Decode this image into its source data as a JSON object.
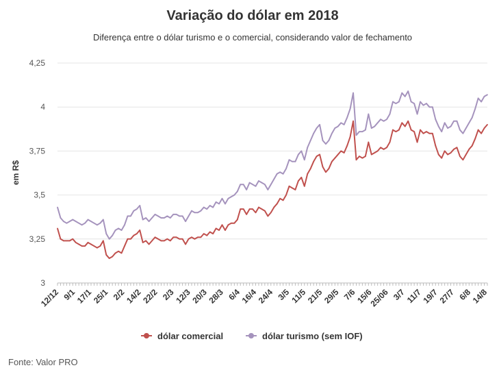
{
  "chart_data": {
    "type": "line",
    "title": "Variação do dólar em 2018",
    "subtitle": "Diferença entre o dólar turismo e o comercial, considerando valor de fechamento",
    "ylabel": "em R$",
    "xlabel": "",
    "ylim": [
      3,
      4.25
    ],
    "yticks": [
      "3",
      "3,25",
      "3,5",
      "3,75",
      "4",
      "4,25"
    ],
    "xtick_labels": [
      "12/12",
      "9/1",
      "17/1",
      "25/1",
      "2/2",
      "14/2",
      "22/2",
      "2/3",
      "12/3",
      "20/3",
      "28/3",
      "6/4",
      "16/4",
      "24/4",
      "3/5",
      "11/5",
      "21/5",
      "29/5",
      "7/6",
      "15/6",
      "25/06",
      "3/7",
      "11/7",
      "19/7",
      "27/7",
      "6/8",
      "14/8"
    ],
    "grid": "horizontal",
    "legend": "bottom",
    "source": "Fonte: Valor PRO",
    "colors": {
      "comercial": "#c0504d",
      "turismo": "#a593bd"
    },
    "series": [
      {
        "name": "dólar comercial",
        "values": [
          3.31,
          3.25,
          3.24,
          3.24,
          3.24,
          3.25,
          3.23,
          3.22,
          3.21,
          3.21,
          3.23,
          3.22,
          3.21,
          3.2,
          3.21,
          3.24,
          3.16,
          3.14,
          3.15,
          3.17,
          3.18,
          3.17,
          3.21,
          3.25,
          3.25,
          3.27,
          3.28,
          3.3,
          3.23,
          3.24,
          3.22,
          3.24,
          3.26,
          3.25,
          3.24,
          3.24,
          3.25,
          3.24,
          3.26,
          3.26,
          3.25,
          3.25,
          3.22,
          3.25,
          3.26,
          3.25,
          3.26,
          3.26,
          3.28,
          3.27,
          3.29,
          3.28,
          3.31,
          3.3,
          3.33,
          3.3,
          3.33,
          3.34,
          3.34,
          3.36,
          3.42,
          3.42,
          3.39,
          3.42,
          3.42,
          3.4,
          3.43,
          3.42,
          3.41,
          3.38,
          3.4,
          3.43,
          3.45,
          3.48,
          3.47,
          3.5,
          3.55,
          3.54,
          3.53,
          3.58,
          3.6,
          3.55,
          3.62,
          3.65,
          3.69,
          3.72,
          3.73,
          3.66,
          3.63,
          3.65,
          3.69,
          3.71,
          3.73,
          3.75,
          3.74,
          3.78,
          3.83,
          3.92,
          3.7,
          3.72,
          3.71,
          3.72,
          3.8,
          3.73,
          3.74,
          3.75,
          3.77,
          3.76,
          3.77,
          3.8,
          3.87,
          3.86,
          3.87,
          3.91,
          3.89,
          3.92,
          3.87,
          3.86,
          3.8,
          3.87,
          3.85,
          3.86,
          3.85,
          3.85,
          3.78,
          3.73,
          3.71,
          3.75,
          3.73,
          3.74,
          3.76,
          3.77,
          3.72,
          3.7,
          3.73,
          3.76,
          3.78,
          3.82,
          3.87,
          3.85,
          3.88,
          3.9
        ]
      },
      {
        "name": "dólar turismo (sem IOF)",
        "values": [
          3.43,
          3.37,
          3.35,
          3.34,
          3.35,
          3.36,
          3.35,
          3.34,
          3.33,
          3.34,
          3.36,
          3.35,
          3.34,
          3.33,
          3.34,
          3.36,
          3.28,
          3.25,
          3.27,
          3.3,
          3.31,
          3.3,
          3.33,
          3.38,
          3.38,
          3.41,
          3.42,
          3.44,
          3.36,
          3.37,
          3.35,
          3.37,
          3.39,
          3.38,
          3.37,
          3.37,
          3.38,
          3.37,
          3.39,
          3.39,
          3.38,
          3.38,
          3.35,
          3.38,
          3.41,
          3.4,
          3.4,
          3.41,
          3.43,
          3.42,
          3.44,
          3.43,
          3.46,
          3.45,
          3.48,
          3.45,
          3.48,
          3.49,
          3.5,
          3.52,
          3.56,
          3.56,
          3.53,
          3.57,
          3.56,
          3.55,
          3.58,
          3.57,
          3.56,
          3.53,
          3.56,
          3.59,
          3.62,
          3.63,
          3.62,
          3.65,
          3.7,
          3.69,
          3.69,
          3.73,
          3.75,
          3.7,
          3.77,
          3.81,
          3.85,
          3.88,
          3.9,
          3.81,
          3.79,
          3.81,
          3.85,
          3.88,
          3.89,
          3.91,
          3.9,
          3.94,
          3.99,
          4.08,
          3.84,
          3.86,
          3.86,
          3.87,
          3.96,
          3.88,
          3.89,
          3.91,
          3.93,
          3.92,
          3.93,
          3.96,
          4.03,
          4.02,
          4.03,
          4.08,
          4.06,
          4.09,
          4.03,
          4.02,
          3.96,
          4.03,
          4.01,
          4.02,
          4.0,
          4.0,
          3.93,
          3.89,
          3.86,
          3.91,
          3.88,
          3.89,
          3.92,
          3.92,
          3.87,
          3.85,
          3.88,
          3.91,
          3.94,
          3.99,
          4.05,
          4.03,
          4.06,
          4.07
        ]
      }
    ]
  }
}
